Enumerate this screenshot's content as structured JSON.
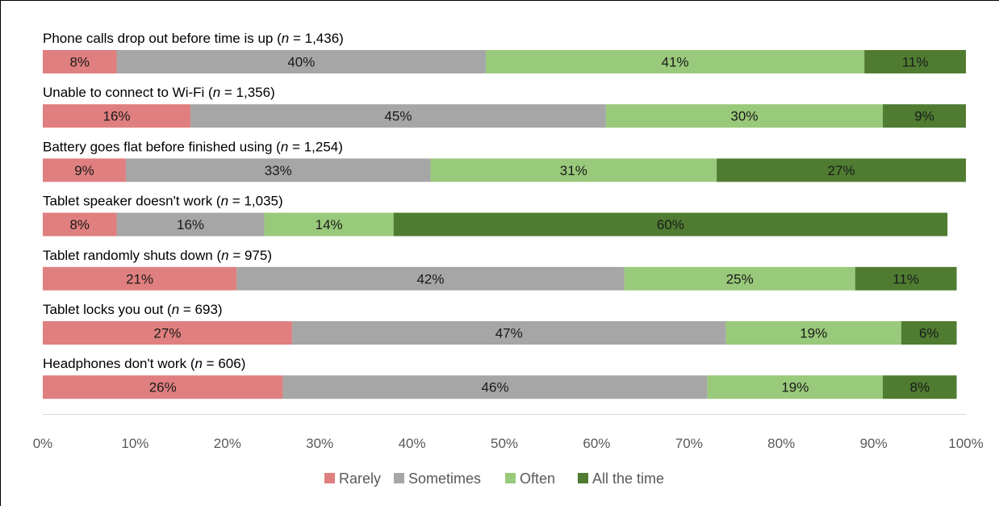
{
  "chart_data": {
    "type": "bar",
    "orientation": "horizontal-stacked-100",
    "title": "",
    "xlabel": "",
    "ylabel": "",
    "xlim": [
      0,
      100
    ],
    "x_ticks": [
      "0%",
      "10%",
      "20%",
      "30%",
      "40%",
      "50%",
      "60%",
      "70%",
      "80%",
      "90%",
      "100%"
    ],
    "grid": false,
    "legend_position": "bottom",
    "categories": [
      {
        "label": "Phone calls drop out before time is up",
        "n": "1,436"
      },
      {
        "label": "Unable to connect to Wi-Fi",
        "n": "1,356"
      },
      {
        "label": "Battery goes flat before finished using",
        "n": "1,254"
      },
      {
        "label": "Tablet speaker doesn't work",
        "n": "1,035"
      },
      {
        "label": "Tablet randomly shuts down",
        "n": "975"
      },
      {
        "label": "Tablet locks you out",
        "n": "693"
      },
      {
        "label": "Headphones don't work",
        "n": "606"
      }
    ],
    "n_symbol": "n",
    "n_prefix": " (",
    "n_infix": " = ",
    "n_suffix": ")",
    "series": [
      {
        "name": "Rarely",
        "color": "#e07f7f",
        "values": [
          8,
          16,
          9,
          8,
          21,
          27,
          26
        ]
      },
      {
        "name": "Sometimes",
        "color": "#a6a6a6",
        "values": [
          40,
          45,
          33,
          16,
          42,
          47,
          46
        ]
      },
      {
        "name": "Often",
        "color": "#99c97a",
        "values": [
          41,
          30,
          31,
          14,
          25,
          19,
          19
        ]
      },
      {
        "name": "All the time",
        "color": "#4f7c31",
        "values": [
          11,
          9,
          27,
          60,
          11,
          6,
          8
        ]
      }
    ]
  }
}
